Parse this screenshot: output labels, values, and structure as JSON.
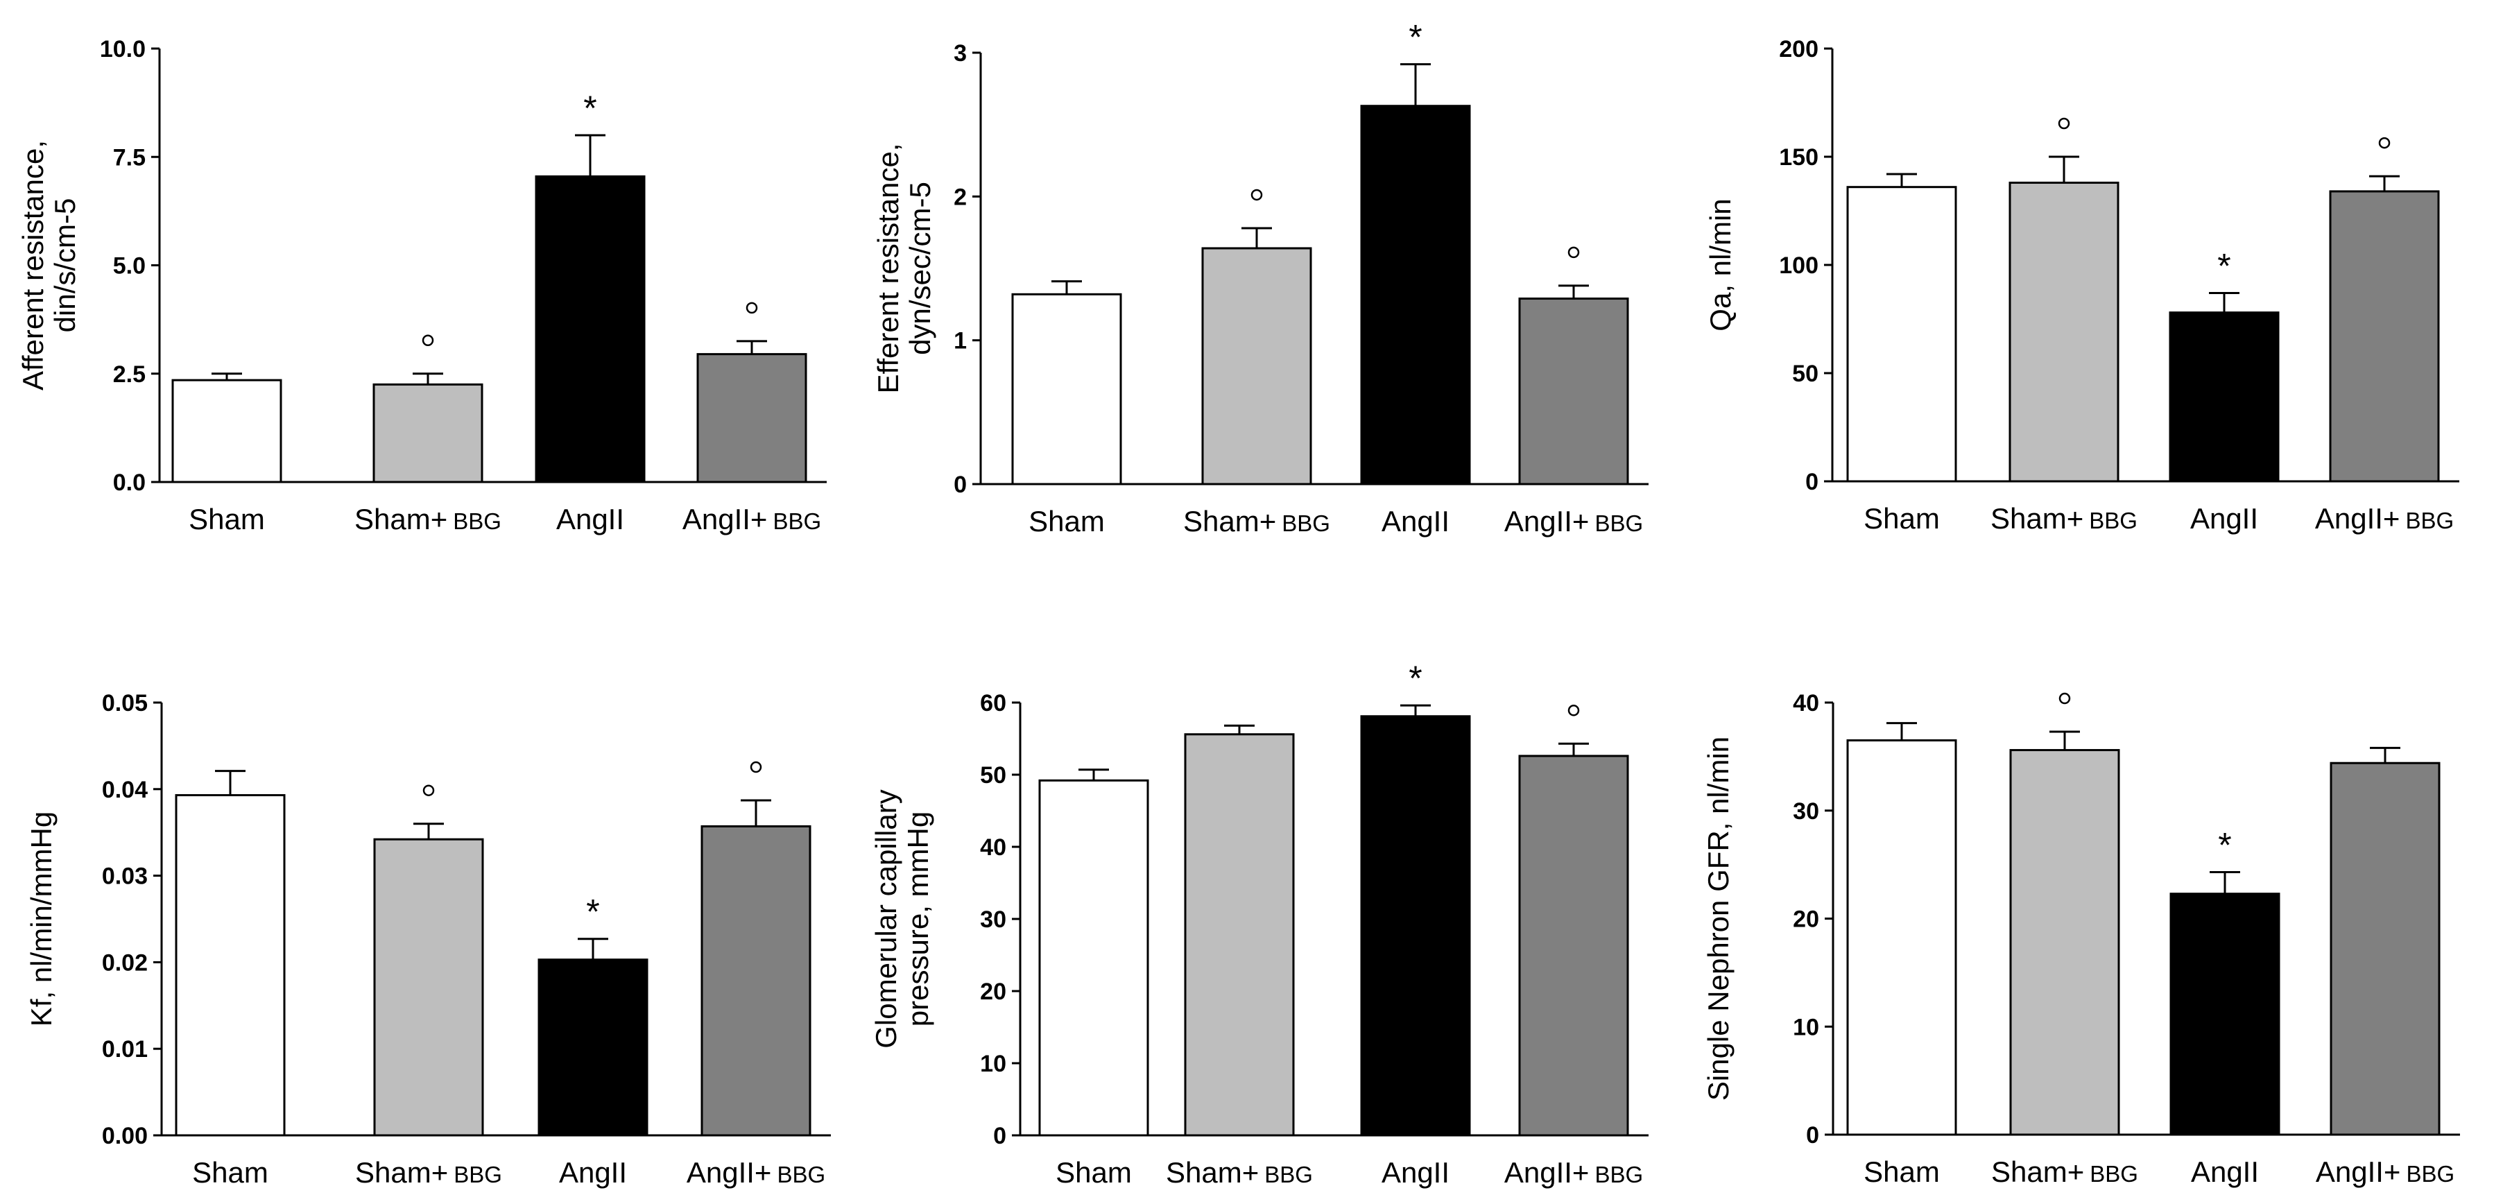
{
  "figure": {
    "categories": [
      "Sham",
      "Sham+",
      "AngII",
      "AngII+"
    ],
    "category_suffix": "BBG",
    "colors": [
      "#ffffff",
      "#bebebe",
      "#000000",
      "#808080"
    ],
    "star_symbol": "*",
    "circle_symbol": "°"
  },
  "chart_data": [
    {
      "type": "bar",
      "ylabel": [
        "Afferent resistance,",
        "din/s/cm-5"
      ],
      "ylim": [
        0,
        10
      ],
      "yticks": [
        "0.0",
        "2.5",
        "5.0",
        "7.5",
        "10.0"
      ],
      "ytick_values": [
        0,
        2.5,
        5,
        7.5,
        10
      ],
      "values": [
        2.35,
        2.25,
        7.05,
        2.95
      ],
      "errors": [
        0.15,
        0.25,
        0.95,
        0.3
      ],
      "markers": [
        "",
        "circle",
        "star",
        "circle"
      ]
    },
    {
      "type": "bar",
      "ylabel": [
        "Efferent resistance,",
        "dyn/sec/cm-5"
      ],
      "ylim": [
        0,
        3
      ],
      "yticks": [
        "0",
        "1",
        "2",
        "3"
      ],
      "ytick_values": [
        0,
        1,
        2,
        3
      ],
      "values": [
        1.32,
        1.64,
        2.63,
        1.29
      ],
      "errors": [
        0.09,
        0.14,
        0.29,
        0.09
      ],
      "markers": [
        "",
        "circle",
        "star",
        "circle"
      ]
    },
    {
      "type": "bar",
      "ylabel": [
        "Qa, nl/min"
      ],
      "ylim": [
        0,
        200
      ],
      "yticks": [
        "0",
        "50",
        "100",
        "150",
        "200"
      ],
      "ytick_values": [
        0,
        50,
        100,
        150,
        200
      ],
      "values": [
        136,
        138,
        78,
        134
      ],
      "errors": [
        6,
        12,
        9,
        7
      ],
      "markers": [
        "",
        "circle",
        "star",
        "circle"
      ]
    },
    {
      "type": "bar",
      "ylabel": [
        "Kf, nl/min/mmHg"
      ],
      "ylim": [
        0,
        0.05
      ],
      "yticks": [
        "0.00",
        "0.01",
        "0.02",
        "0.03",
        "0.04",
        "0.05"
      ],
      "ytick_values": [
        0,
        0.01,
        0.02,
        0.03,
        0.04,
        0.05
      ],
      "values": [
        0.0393,
        0.0342,
        0.0203,
        0.0357
      ],
      "errors": [
        0.0028,
        0.0018,
        0.0024,
        0.003
      ],
      "markers": [
        "",
        "circle",
        "star",
        "circle"
      ]
    },
    {
      "type": "bar",
      "ylabel": [
        "Glomerular capillary",
        "pressure, mmHg"
      ],
      "ylim": [
        0,
        60
      ],
      "yticks": [
        "0",
        "10",
        "20",
        "30",
        "40",
        "50",
        "60"
      ],
      "ytick_values": [
        0,
        10,
        20,
        30,
        40,
        50,
        60
      ],
      "values": [
        49.2,
        55.6,
        58.1,
        52.6
      ],
      "errors": [
        1.5,
        1.2,
        1.5,
        1.7
      ],
      "markers": [
        "",
        "",
        "star",
        "circle"
      ]
    },
    {
      "type": "bar",
      "ylabel": [
        "Single Nephron GFR, nl/min"
      ],
      "ylim": [
        0,
        40
      ],
      "yticks": [
        "0",
        "10",
        "20",
        "30",
        "40"
      ],
      "ytick_values": [
        0,
        10,
        20,
        30,
        40
      ],
      "values": [
        36.5,
        35.6,
        22.3,
        34.4
      ],
      "errors": [
        1.6,
        1.7,
        2.0,
        1.4
      ],
      "markers": [
        "",
        "circle",
        "star",
        ""
      ]
    }
  ]
}
